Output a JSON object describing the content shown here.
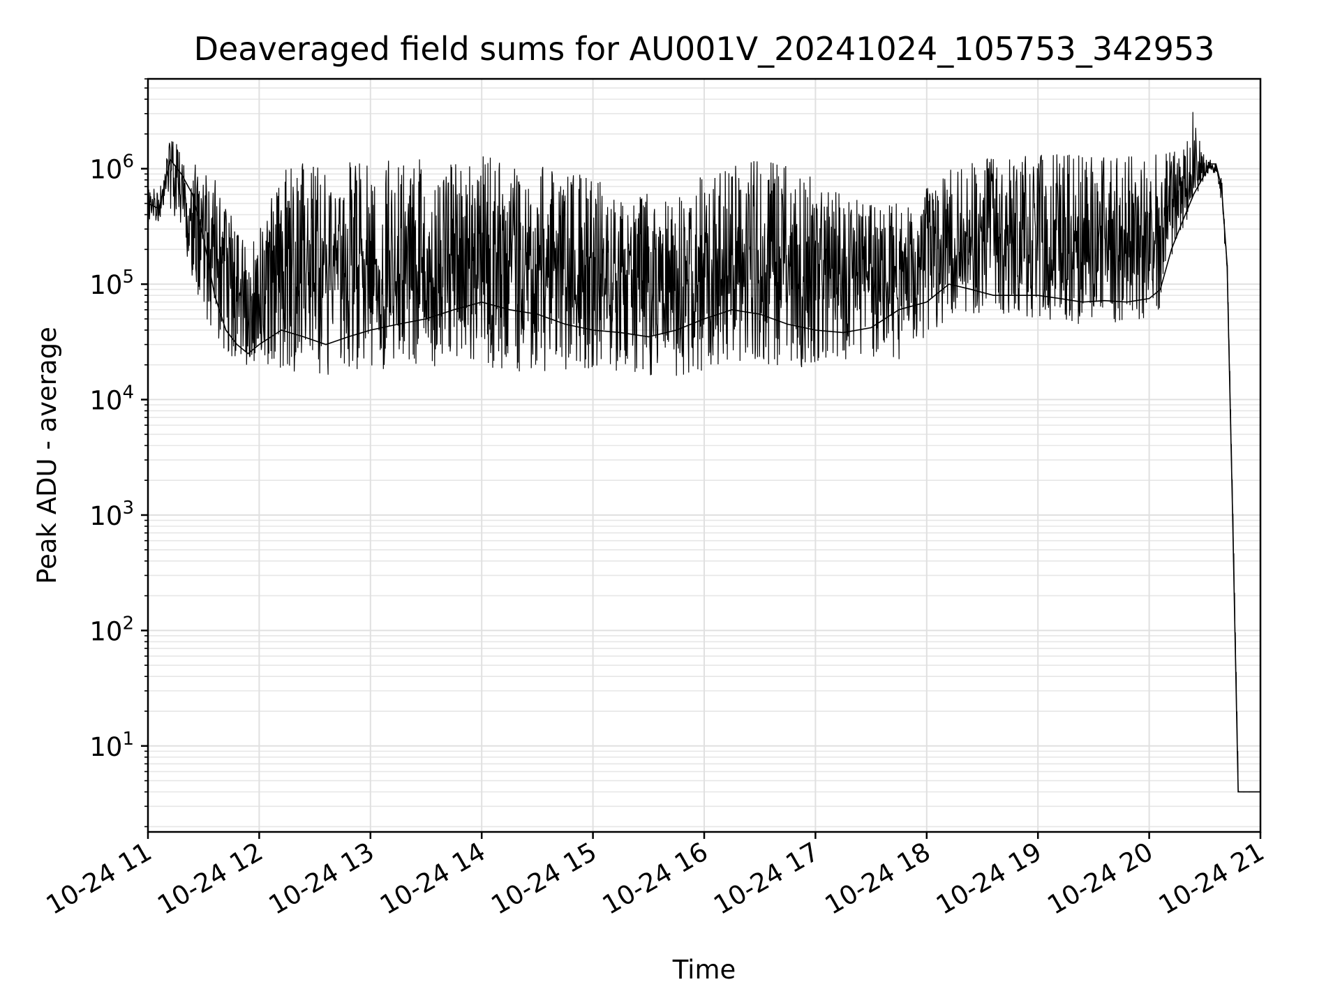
{
  "chart_data": {
    "type": "line",
    "title": "Deaveraged field sums for AU001V_20241024_105753_342953",
    "xlabel": "Time",
    "ylabel": "Peak ADU - average",
    "yscale": "log",
    "grid": true,
    "xlim": [
      "2024-10-24 11:00",
      "2024-10-24 21:00"
    ],
    "ylim": [
      1.8,
      6000000
    ],
    "x_ticks": [
      {
        "value": "2024-10-24 11:00",
        "label": "10-24 11"
      },
      {
        "value": "2024-10-24 12:00",
        "label": "10-24 12"
      },
      {
        "value": "2024-10-24 13:00",
        "label": "10-24 13"
      },
      {
        "value": "2024-10-24 14:00",
        "label": "10-24 14"
      },
      {
        "value": "2024-10-24 15:00",
        "label": "10-24 15"
      },
      {
        "value": "2024-10-24 16:00",
        "label": "10-24 16"
      },
      {
        "value": "2024-10-24 17:00",
        "label": "10-24 17"
      },
      {
        "value": "2024-10-24 18:00",
        "label": "10-24 18"
      },
      {
        "value": "2024-10-24 19:00",
        "label": "10-24 19"
      },
      {
        "value": "2024-10-24 20:00",
        "label": "10-24 20"
      },
      {
        "value": "2024-10-24 21:00",
        "label": "10-24 21"
      }
    ],
    "y_ticks": [
      {
        "value": 10,
        "base": "10",
        "exp": "1"
      },
      {
        "value": 100,
        "base": "10",
        "exp": "2"
      },
      {
        "value": 1000,
        "base": "10",
        "exp": "3"
      },
      {
        "value": 10000,
        "base": "10",
        "exp": "4"
      },
      {
        "value": 100000,
        "base": "10",
        "exp": "5"
      },
      {
        "value": 1000000,
        "base": "10",
        "exp": "6"
      }
    ],
    "series": [
      {
        "color": "#000000",
        "x": [
          "2024-10-24 11:00",
          "2024-10-24 11:06",
          "2024-10-24 11:12",
          "2024-10-24 11:18",
          "2024-10-24 11:24",
          "2024-10-24 11:30",
          "2024-10-24 11:36",
          "2024-10-24 11:42",
          "2024-10-24 11:48",
          "2024-10-24 11:54",
          "2024-10-24 12:00",
          "2024-10-24 12:12",
          "2024-10-24 12:24",
          "2024-10-24 12:36",
          "2024-10-24 12:48",
          "2024-10-24 13:00",
          "2024-10-24 13:15",
          "2024-10-24 13:30",
          "2024-10-24 13:45",
          "2024-10-24 14:00",
          "2024-10-24 14:15",
          "2024-10-24 14:30",
          "2024-10-24 14:45",
          "2024-10-24 15:00",
          "2024-10-24 15:15",
          "2024-10-24 15:30",
          "2024-10-24 15:45",
          "2024-10-24 16:00",
          "2024-10-24 16:15",
          "2024-10-24 16:30",
          "2024-10-24 16:45",
          "2024-10-24 17:00",
          "2024-10-24 17:15",
          "2024-10-24 17:30",
          "2024-10-24 17:45",
          "2024-10-24 18:00",
          "2024-10-24 18:12",
          "2024-10-24 18:24",
          "2024-10-24 18:36",
          "2024-10-24 18:48",
          "2024-10-24 19:00",
          "2024-10-24 19:12",
          "2024-10-24 19:24",
          "2024-10-24 19:36",
          "2024-10-24 19:48",
          "2024-10-24 20:00",
          "2024-10-24 20:06",
          "2024-10-24 20:12",
          "2024-10-24 20:18",
          "2024-10-24 20:24",
          "2024-10-24 20:30",
          "2024-10-24 20:33",
          "2024-10-24 20:36",
          "2024-10-24 20:39",
          "2024-10-24 20:42",
          "2024-10-24 20:45",
          "2024-10-24 20:48",
          "2024-10-24 20:51",
          "2024-10-24 20:54",
          "2024-10-24 21:00"
        ],
        "y": [
          500000,
          450000,
          1200000,
          900000,
          600000,
          250000,
          80000,
          40000,
          30000,
          25000,
          30000,
          40000,
          35000,
          30000,
          35000,
          40000,
          45000,
          50000,
          60000,
          70000,
          60000,
          55000,
          45000,
          40000,
          38000,
          35000,
          40000,
          50000,
          60000,
          55000,
          45000,
          40000,
          38000,
          42000,
          60000,
          70000,
          100000,
          90000,
          80000,
          80000,
          80000,
          75000,
          70000,
          72000,
          70000,
          75000,
          90000,
          200000,
          350000,
          600000,
          900000,
          1100000,
          1100000,
          700000,
          150000,
          1000,
          4,
          4,
          4,
          4
        ],
        "y_max": [
          700000,
          650000,
          1800000,
          1600000,
          1500000,
          1000000,
          800000,
          500000,
          300000,
          200000,
          300000,
          1100000,
          1150000,
          1200000,
          1200000,
          1200000,
          1250000,
          1250000,
          1200000,
          1300000,
          1250000,
          1100000,
          1000000,
          800000,
          700000,
          600000,
          600000,
          900000,
          1200000,
          1250000,
          1100000,
          800000,
          600000,
          500000,
          500000,
          700000,
          1100000,
          1200000,
          1300000,
          1300000,
          1300000,
          1350000,
          1300000,
          1300000,
          1300000,
          1300000,
          1350000,
          1400000,
          1500000,
          3300000,
          1200000,
          1200000,
          1100000,
          800000,
          150000,
          1000,
          4,
          4,
          4,
          4
        ],
        "y_min": [
          350000,
          350000,
          400000,
          300000,
          100000,
          60000,
          30000,
          22000,
          20000,
          20000,
          20000,
          18000,
          17000,
          16000,
          16000,
          17000,
          18000,
          19000,
          20000,
          20000,
          17000,
          16000,
          17000,
          18000,
          17000,
          16000,
          15000,
          17000,
          20000,
          20000,
          18000,
          19000,
          19000,
          20000,
          22000,
          35000,
          50000,
          55000,
          55000,
          55000,
          50000,
          45000,
          45000,
          45000,
          45000,
          48000,
          60000,
          150000,
          300000,
          500000,
          800000,
          900000,
          900000,
          500000,
          120000,
          1000,
          4,
          4,
          4,
          4
        ]
      }
    ]
  }
}
